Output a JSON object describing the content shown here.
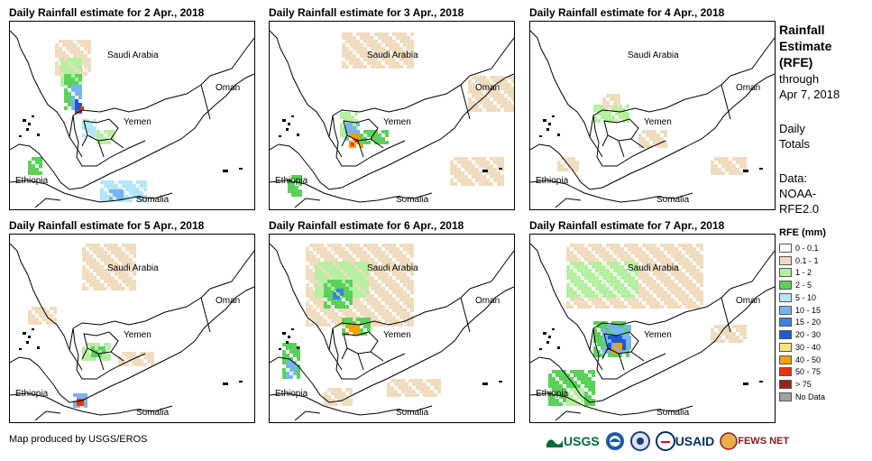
{
  "panels": [
    {
      "title": "Daily Rainfall estimate for 2 Apr., 2018"
    },
    {
      "title": "Daily Rainfall estimate for 3 Apr., 2018"
    },
    {
      "title": "Daily Rainfall estimate for 4 Apr., 2018"
    },
    {
      "title": "Daily Rainfall estimate for 5 Apr., 2018"
    },
    {
      "title": "Daily Rainfall estimate for 6 Apr., 2018"
    },
    {
      "title": "Daily Rainfall estimate for 7 Apr., 2018"
    }
  ],
  "map_labels": {
    "saudi": "Saudi Arabia",
    "oman": "Oman",
    "yemen": "Yemen",
    "ethiopia": "Ethiopia",
    "somalia": "Somalia"
  },
  "sidebar": {
    "title_lines": [
      "Rainfall",
      "Estimate",
      "(RFE)"
    ],
    "through_lines": [
      "through",
      "Apr 7, 2018"
    ],
    "daily_lines": [
      "Daily",
      "Totals"
    ],
    "data_lines": [
      "Data:",
      "NOAA-",
      "RFE2.0"
    ]
  },
  "legend": {
    "title": "RFE (mm)",
    "items": [
      {
        "label": "0 - 0.1",
        "color": "#ffffff"
      },
      {
        "label": "0.1 - 1",
        "color": "#f0dcbe"
      },
      {
        "label": "1 - 2",
        "color": "#b4f0a0"
      },
      {
        "label": "2 - 5",
        "color": "#5ad25a"
      },
      {
        "label": "5 - 10",
        "color": "#b4e6fa"
      },
      {
        "label": "10 - 15",
        "color": "#78b4f0"
      },
      {
        "label": "15 - 20",
        "color": "#3c82e6"
      },
      {
        "label": "20 - 30",
        "color": "#1e5ad2"
      },
      {
        "label": "30 - 40",
        "color": "#fae678"
      },
      {
        "label": "40 - 50",
        "color": "#f5a000"
      },
      {
        "label": "50 - 75",
        "color": "#f03200"
      },
      {
        "label": "> 75",
        "color": "#a01e1e"
      },
      {
        "label": "No Data",
        "color": "#a0a0a0"
      }
    ]
  },
  "credit": "Map produced by USGS/EROS",
  "logos": {
    "usgs": "USGS",
    "usaid": "USAID",
    "fewsnet": "FEWS NET"
  }
}
